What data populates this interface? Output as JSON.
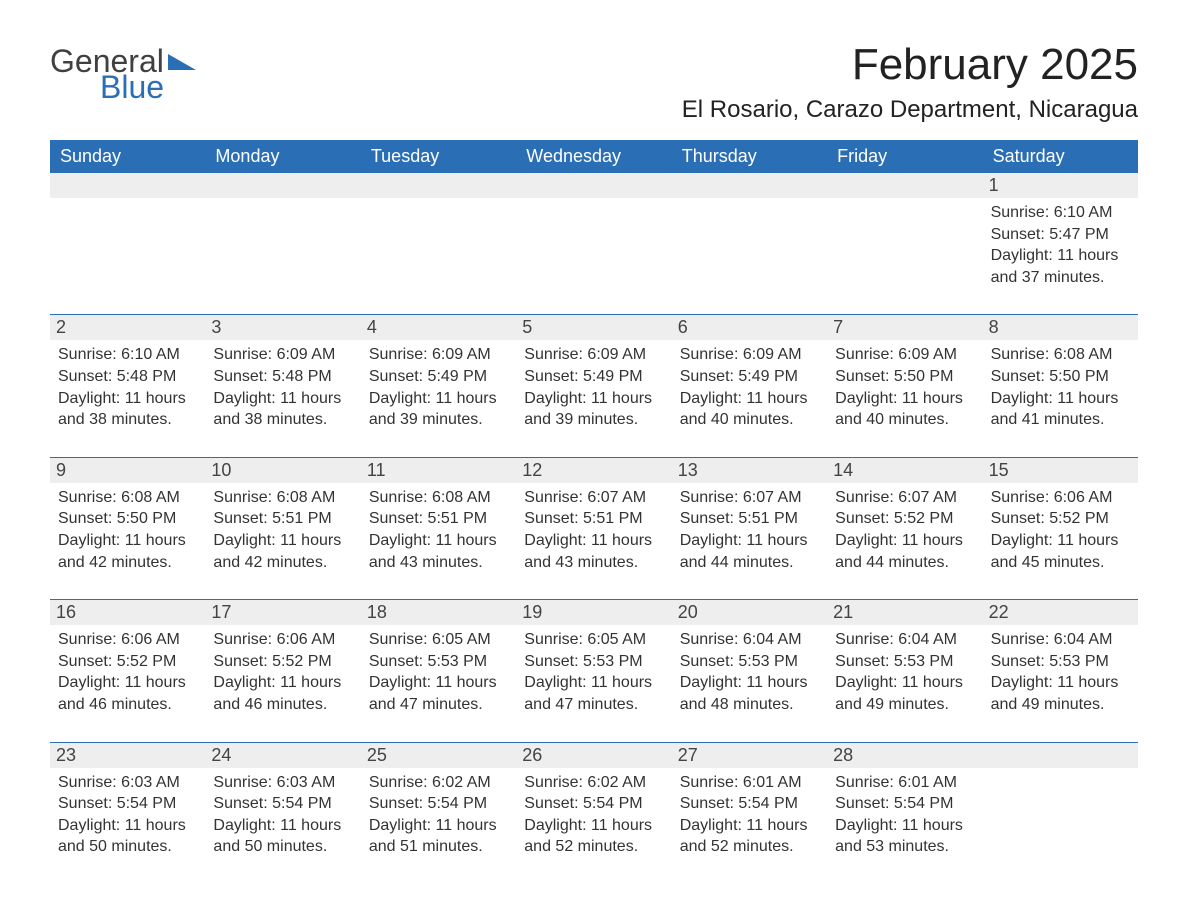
{
  "brand": {
    "line1": "General",
    "line2": "Blue",
    "accent_color": "#2a6fb5",
    "text_color": "#404040"
  },
  "title": "February 2025",
  "location": "El Rosario, Carazo Department, Nicaragua",
  "days_of_week": [
    "Sunday",
    "Monday",
    "Tuesday",
    "Wednesday",
    "Thursday",
    "Friday",
    "Saturday"
  ],
  "colors": {
    "header_bg": "#2a6fb5",
    "header_text": "#ffffff",
    "daynum_bg": "#eeeeee",
    "body_text": "#333333",
    "page_bg": "#ffffff",
    "separator": "#2a6fb5"
  },
  "typography": {
    "title_fontsize": 44,
    "location_fontsize": 24,
    "dow_fontsize": 18,
    "daynum_fontsize": 18,
    "info_fontsize": 16
  },
  "layout": {
    "columns": 7,
    "first_weekday_index": 6,
    "num_days": 28
  },
  "days": [
    {
      "n": 1,
      "sunrise": "6:10 AM",
      "sunset": "5:47 PM",
      "daylight": "11 hours and 37 minutes."
    },
    {
      "n": 2,
      "sunrise": "6:10 AM",
      "sunset": "5:48 PM",
      "daylight": "11 hours and 38 minutes."
    },
    {
      "n": 3,
      "sunrise": "6:09 AM",
      "sunset": "5:48 PM",
      "daylight": "11 hours and 38 minutes."
    },
    {
      "n": 4,
      "sunrise": "6:09 AM",
      "sunset": "5:49 PM",
      "daylight": "11 hours and 39 minutes."
    },
    {
      "n": 5,
      "sunrise": "6:09 AM",
      "sunset": "5:49 PM",
      "daylight": "11 hours and 39 minutes."
    },
    {
      "n": 6,
      "sunrise": "6:09 AM",
      "sunset": "5:49 PM",
      "daylight": "11 hours and 40 minutes."
    },
    {
      "n": 7,
      "sunrise": "6:09 AM",
      "sunset": "5:50 PM",
      "daylight": "11 hours and 40 minutes."
    },
    {
      "n": 8,
      "sunrise": "6:08 AM",
      "sunset": "5:50 PM",
      "daylight": "11 hours and 41 minutes."
    },
    {
      "n": 9,
      "sunrise": "6:08 AM",
      "sunset": "5:50 PM",
      "daylight": "11 hours and 42 minutes."
    },
    {
      "n": 10,
      "sunrise": "6:08 AM",
      "sunset": "5:51 PM",
      "daylight": "11 hours and 42 minutes."
    },
    {
      "n": 11,
      "sunrise": "6:08 AM",
      "sunset": "5:51 PM",
      "daylight": "11 hours and 43 minutes."
    },
    {
      "n": 12,
      "sunrise": "6:07 AM",
      "sunset": "5:51 PM",
      "daylight": "11 hours and 43 minutes."
    },
    {
      "n": 13,
      "sunrise": "6:07 AM",
      "sunset": "5:51 PM",
      "daylight": "11 hours and 44 minutes."
    },
    {
      "n": 14,
      "sunrise": "6:07 AM",
      "sunset": "5:52 PM",
      "daylight": "11 hours and 44 minutes."
    },
    {
      "n": 15,
      "sunrise": "6:06 AM",
      "sunset": "5:52 PM",
      "daylight": "11 hours and 45 minutes."
    },
    {
      "n": 16,
      "sunrise": "6:06 AM",
      "sunset": "5:52 PM",
      "daylight": "11 hours and 46 minutes."
    },
    {
      "n": 17,
      "sunrise": "6:06 AM",
      "sunset": "5:52 PM",
      "daylight": "11 hours and 46 minutes."
    },
    {
      "n": 18,
      "sunrise": "6:05 AM",
      "sunset": "5:53 PM",
      "daylight": "11 hours and 47 minutes."
    },
    {
      "n": 19,
      "sunrise": "6:05 AM",
      "sunset": "5:53 PM",
      "daylight": "11 hours and 47 minutes."
    },
    {
      "n": 20,
      "sunrise": "6:04 AM",
      "sunset": "5:53 PM",
      "daylight": "11 hours and 48 minutes."
    },
    {
      "n": 21,
      "sunrise": "6:04 AM",
      "sunset": "5:53 PM",
      "daylight": "11 hours and 49 minutes."
    },
    {
      "n": 22,
      "sunrise": "6:04 AM",
      "sunset": "5:53 PM",
      "daylight": "11 hours and 49 minutes."
    },
    {
      "n": 23,
      "sunrise": "6:03 AM",
      "sunset": "5:54 PM",
      "daylight": "11 hours and 50 minutes."
    },
    {
      "n": 24,
      "sunrise": "6:03 AM",
      "sunset": "5:54 PM",
      "daylight": "11 hours and 50 minutes."
    },
    {
      "n": 25,
      "sunrise": "6:02 AM",
      "sunset": "5:54 PM",
      "daylight": "11 hours and 51 minutes."
    },
    {
      "n": 26,
      "sunrise": "6:02 AM",
      "sunset": "5:54 PM",
      "daylight": "11 hours and 52 minutes."
    },
    {
      "n": 27,
      "sunrise": "6:01 AM",
      "sunset": "5:54 PM",
      "daylight": "11 hours and 52 minutes."
    },
    {
      "n": 28,
      "sunrise": "6:01 AM",
      "sunset": "5:54 PM",
      "daylight": "11 hours and 53 minutes."
    }
  ],
  "labels": {
    "sunrise": "Sunrise:",
    "sunset": "Sunset:",
    "daylight": "Daylight:"
  }
}
